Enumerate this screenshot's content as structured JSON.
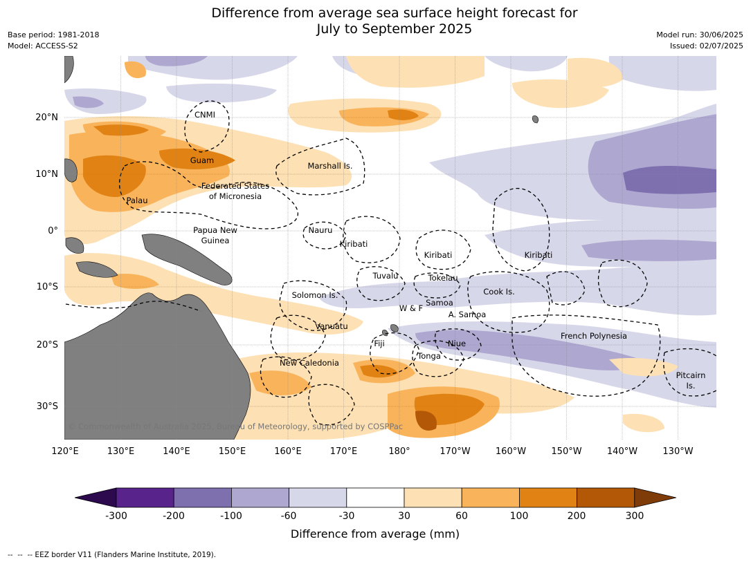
{
  "title_line1": "Difference from average sea surface height forecast for",
  "title_line2": "July to September 2025",
  "base_period": "Base period: 1981-2018",
  "model": "Model: ACCESS-S2",
  "model_run": "Model run: 30/06/2025",
  "issued": "Issued: 02/07/2025",
  "copyright": "© Commonwealth of Australia 2025, Bureau of Meteorology, supported by COSPPac",
  "lon_ticks": [
    "120°E",
    "130°E",
    "140°E",
    "150°E",
    "160°E",
    "170°E",
    "180°",
    "170°W",
    "160°W",
    "150°W",
    "140°W",
    "130°W"
  ],
  "lat_ticks": [
    "20°N",
    "10°N",
    "0°",
    "10°S",
    "20°S",
    "30°S"
  ],
  "places": [
    "CNMI",
    "Guam",
    "Marshall Is.",
    "Federated States",
    "of Micronesia",
    "Palau",
    "Papua New",
    "Guinea",
    "Nauru",
    "Kiribati",
    "Kiribati",
    "Kiribati",
    "Tuvalu",
    "Tokelau",
    "Cook Is.",
    "Solomon Is.",
    "W & F",
    "Samoa",
    "A. Samoa",
    "Vanuatu",
    "Fiji",
    "Niue",
    "Tonga",
    "French Polynesia",
    "New Caledonia",
    "Pitcairn",
    "Is."
  ],
  "colorbar": {
    "colors": [
      "#2d0a4e",
      "#58238a",
      "#7e6faf",
      "#aea7d0",
      "#d7d7ea",
      "#ffffff",
      "#fde0b3",
      "#f9b35b",
      "#e08214",
      "#b35806",
      "#7f3b08"
    ],
    "labels": [
      "-300",
      "-200",
      "-100",
      "-60",
      "-30",
      "30",
      "60",
      "100",
      "200",
      "300"
    ],
    "title": "Difference from average (mm)"
  },
  "legend_note": "-- EEZ border V11 (Flanders Marine Institute, 2019)."
}
